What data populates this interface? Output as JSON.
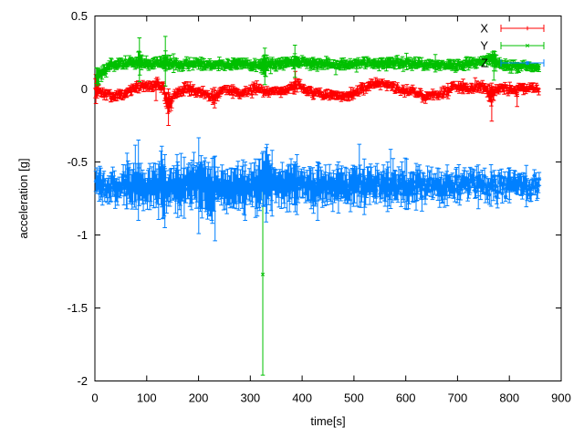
{
  "chart_data": {
    "type": "scatter",
    "style": "errorbars",
    "title": "",
    "xlabel": "time[s]",
    "ylabel": "acceleration [g]",
    "xlim": [
      0,
      900
    ],
    "ylim": [
      -2,
      0.5
    ],
    "xtick_values": [
      0,
      100,
      200,
      300,
      400,
      500,
      600,
      700,
      800,
      900
    ],
    "xtick_labels": [
      "0",
      "100",
      "200",
      "300",
      "400",
      "500",
      "600",
      "700",
      "800",
      "900"
    ],
    "ytick_values": [
      0.5,
      0,
      -0.5,
      -1,
      -1.5,
      -2
    ],
    "ytick_labels": [
      "0.5",
      "0",
      "-0.5",
      "-1",
      "-1.5",
      "-2"
    ],
    "grid": false,
    "background_color": "#ffffff",
    "border_color": "#000000",
    "legend_position": "top-right-inside",
    "legend": [
      {
        "label": "X",
        "marker": "plus",
        "color": "#ff0000"
      },
      {
        "label": "Y",
        "marker": "cross",
        "color": "#00c000"
      },
      {
        "label": "Z",
        "marker": "star",
        "color": "#0080ff"
      }
    ],
    "series": [
      {
        "name": "X",
        "color": "#ff0000",
        "marker": "plus",
        "seed": 7,
        "noise": 0.03,
        "dt": 1.55,
        "t_start": 1,
        "t_end": 858,
        "mean": [
          [
            1,
            0
          ],
          [
            8,
            -0.01
          ],
          [
            20,
            -0.035
          ],
          [
            35,
            -0.05
          ],
          [
            50,
            -0.04
          ],
          [
            65,
            -0.01
          ],
          [
            80,
            0.015
          ],
          [
            95,
            0.01
          ],
          [
            110,
            0.02
          ],
          [
            122,
            0.04
          ],
          [
            132,
            0.01
          ],
          [
            140,
            -0.1
          ],
          [
            147,
            -0.1
          ],
          [
            153,
            -0.04
          ],
          [
            163,
            -0.01
          ],
          [
            176,
            0
          ],
          [
            190,
            -0.015
          ],
          [
            205,
            -0.02
          ],
          [
            218,
            -0.04
          ],
          [
            228,
            -0.06
          ],
          [
            236,
            -0.05
          ],
          [
            244,
            -0.01
          ],
          [
            253,
            0
          ],
          [
            263,
            -0.01
          ],
          [
            273,
            -0.02
          ],
          [
            286,
            -0.03
          ],
          [
            298,
            -0.015
          ],
          [
            310,
            0
          ],
          [
            321,
            -0.005
          ],
          [
            333,
            -0.02
          ],
          [
            345,
            -0.015
          ],
          [
            357,
            0
          ],
          [
            368,
            -0.01
          ],
          [
            378,
            0
          ],
          [
            388,
            0.03
          ],
          [
            396,
            0.02
          ],
          [
            406,
            -0.005
          ],
          [
            420,
            -0.02
          ],
          [
            436,
            -0.03
          ],
          [
            451,
            -0.04
          ],
          [
            466,
            -0.05
          ],
          [
            481,
            -0.045
          ],
          [
            496,
            -0.035
          ],
          [
            508,
            -0.02
          ],
          [
            520,
            0
          ],
          [
            533,
            0.03
          ],
          [
            546,
            0.045
          ],
          [
            558,
            0.04
          ],
          [
            570,
            0.02
          ],
          [
            583,
            0
          ],
          [
            596,
            -0.01
          ],
          [
            609,
            -0.015
          ],
          [
            622,
            -0.03
          ],
          [
            636,
            -0.05
          ],
          [
            648,
            -0.045
          ],
          [
            661,
            -0.03
          ],
          [
            673,
            -0.025
          ],
          [
            686,
            0
          ],
          [
            696,
            0.02
          ],
          [
            706,
            0.015
          ],
          [
            718,
            0.005
          ],
          [
            731,
            0
          ],
          [
            743,
            0.025
          ],
          [
            753,
            0.02
          ],
          [
            762,
            -0.03
          ],
          [
            768,
            -0.05
          ],
          [
            775,
            -0.005
          ],
          [
            786,
            0.005
          ],
          [
            800,
            0
          ],
          [
            813,
            -0.01
          ],
          [
            826,
            0.005
          ],
          [
            841,
            0
          ],
          [
            858,
            0
          ]
        ],
        "err": [
          [
            1,
            0.06
          ],
          [
            6,
            0.03
          ],
          [
            12,
            0.02
          ],
          [
            130,
            0.02
          ],
          [
            140,
            0.06
          ],
          [
            150,
            0.022
          ],
          [
            222,
            0.02
          ],
          [
            230,
            0.04
          ],
          [
            238,
            0.02
          ],
          [
            378,
            0.02
          ],
          [
            388,
            0.035
          ],
          [
            398,
            0.02
          ],
          [
            755,
            0.02
          ],
          [
            766,
            0.05
          ],
          [
            776,
            0.02
          ],
          [
            858,
            0.016
          ]
        ],
        "spikes": [
          {
            "t": 2,
            "lo": -0.1,
            "hi": 0.1
          },
          {
            "t": 118,
            "lo": -0.08,
            "hi": 0.07
          },
          {
            "t": 142,
            "lo": -0.25,
            "hi": 0.0
          },
          {
            "t": 231,
            "lo": -0.13,
            "hi": 0.01
          },
          {
            "t": 387,
            "lo": -0.02,
            "hi": 0.12
          },
          {
            "t": 766,
            "lo": -0.22,
            "hi": 0.04
          },
          {
            "t": 815,
            "lo": -0.12,
            "hi": 0.02
          }
        ]
      },
      {
        "name": "Y",
        "color": "#00c000",
        "marker": "cross",
        "seed": 13,
        "noise": 0.028,
        "dt": 1.55,
        "t_start": 3,
        "t_end": 858,
        "mean": [
          [
            3,
            0.1
          ],
          [
            10,
            0.1
          ],
          [
            16,
            0.11
          ],
          [
            24,
            0.14
          ],
          [
            32,
            0.16
          ],
          [
            45,
            0.17
          ],
          [
            60,
            0.175
          ],
          [
            75,
            0.18
          ],
          [
            88,
            0.185
          ],
          [
            100,
            0.175
          ],
          [
            112,
            0.17
          ],
          [
            124,
            0.175
          ],
          [
            136,
            0.185
          ],
          [
            148,
            0.175
          ],
          [
            160,
            0.165
          ],
          [
            175,
            0.17
          ],
          [
            190,
            0.172
          ],
          [
            205,
            0.17
          ],
          [
            220,
            0.165
          ],
          [
            235,
            0.17
          ],
          [
            250,
            0.165
          ],
          [
            265,
            0.17
          ],
          [
            280,
            0.172
          ],
          [
            295,
            0.17
          ],
          [
            310,
            0.165
          ],
          [
            322,
            0.165
          ],
          [
            335,
            0.17
          ],
          [
            350,
            0.168
          ],
          [
            365,
            0.175
          ],
          [
            378,
            0.185
          ],
          [
            390,
            0.195
          ],
          [
            400,
            0.185
          ],
          [
            412,
            0.175
          ],
          [
            428,
            0.168
          ],
          [
            445,
            0.172
          ],
          [
            460,
            0.168
          ],
          [
            478,
            0.172
          ],
          [
            495,
            0.17
          ],
          [
            512,
            0.172
          ],
          [
            530,
            0.178
          ],
          [
            548,
            0.172
          ],
          [
            565,
            0.17
          ],
          [
            580,
            0.175
          ],
          [
            598,
            0.178
          ],
          [
            615,
            0.172
          ],
          [
            632,
            0.165
          ],
          [
            650,
            0.17
          ],
          [
            668,
            0.165
          ],
          [
            685,
            0.17
          ],
          [
            702,
            0.162
          ],
          [
            720,
            0.168
          ],
          [
            738,
            0.175
          ],
          [
            750,
            0.195
          ],
          [
            760,
            0.205
          ],
          [
            770,
            0.19
          ],
          [
            780,
            0.172
          ],
          [
            795,
            0.162
          ],
          [
            810,
            0.155
          ],
          [
            825,
            0.158
          ],
          [
            840,
            0.152
          ],
          [
            858,
            0.15
          ]
        ],
        "err": [
          [
            3,
            0.045
          ],
          [
            14,
            0.03
          ],
          [
            30,
            0.022
          ],
          [
            80,
            0.022
          ],
          [
            86,
            0.06
          ],
          [
            92,
            0.024
          ],
          [
            130,
            0.024
          ],
          [
            136,
            0.07
          ],
          [
            142,
            0.024
          ],
          [
            320,
            0.022
          ],
          [
            327,
            0.06
          ],
          [
            334,
            0.024
          ],
          [
            380,
            0.024
          ],
          [
            387,
            0.05
          ],
          [
            394,
            0.024
          ],
          [
            764,
            0.022
          ],
          [
            771,
            0.05
          ],
          [
            778,
            0.022
          ],
          [
            858,
            0.02
          ]
        ],
        "spikes": [
          {
            "t": 86,
            "lo": 0.05,
            "hi": 0.35
          },
          {
            "t": 136,
            "lo": 0.02,
            "hi": 0.36
          },
          {
            "t": 324,
            "lo": -1.96,
            "hi": -0.66,
            "y": -1.27
          },
          {
            "t": 328,
            "lo": 0.03,
            "hi": 0.28
          },
          {
            "t": 386,
            "lo": 0.08,
            "hi": 0.3
          },
          {
            "t": 770,
            "lo": 0.06,
            "hi": 0.26
          }
        ],
        "outlier_note": "single point near t=324 at y=-1.27 with error bar reaching -1.96"
      },
      {
        "name": "Z",
        "color": "#0080ff",
        "marker": "star",
        "seed": 5,
        "noise": 0.085,
        "dt": 1.55,
        "t_start": 2,
        "t_end": 858,
        "mean": [
          [
            2,
            -0.63
          ],
          [
            10,
            -0.655
          ],
          [
            20,
            -0.665
          ],
          [
            32,
            -0.66
          ],
          [
            45,
            -0.67
          ],
          [
            58,
            -0.655
          ],
          [
            70,
            -0.665
          ],
          [
            83,
            -0.645
          ],
          [
            95,
            -0.67
          ],
          [
            108,
            -0.66
          ],
          [
            120,
            -0.67
          ],
          [
            135,
            -0.685
          ],
          [
            150,
            -0.66
          ],
          [
            165,
            -0.67
          ],
          [
            180,
            -0.66
          ],
          [
            195,
            -0.665
          ],
          [
            210,
            -0.67
          ],
          [
            225,
            -0.68
          ],
          [
            240,
            -0.665
          ],
          [
            255,
            -0.67
          ],
          [
            270,
            -0.665
          ],
          [
            285,
            -0.67
          ],
          [
            300,
            -0.675
          ],
          [
            315,
            -0.665
          ],
          [
            330,
            -0.63
          ],
          [
            342,
            -0.65
          ],
          [
            355,
            -0.665
          ],
          [
            370,
            -0.66
          ],
          [
            385,
            -0.655
          ],
          [
            400,
            -0.665
          ],
          [
            420,
            -0.66
          ],
          [
            440,
            -0.665
          ],
          [
            460,
            -0.66
          ],
          [
            480,
            -0.665
          ],
          [
            500,
            -0.66
          ],
          [
            520,
            -0.665
          ],
          [
            540,
            -0.66
          ],
          [
            560,
            -0.665
          ],
          [
            580,
            -0.66
          ],
          [
            600,
            -0.662
          ],
          [
            620,
            -0.665
          ],
          [
            640,
            -0.66
          ],
          [
            660,
            -0.662
          ],
          [
            680,
            -0.66
          ],
          [
            700,
            -0.658
          ],
          [
            720,
            -0.66
          ],
          [
            740,
            -0.662
          ],
          [
            760,
            -0.665
          ],
          [
            780,
            -0.66
          ],
          [
            800,
            -0.658
          ],
          [
            820,
            -0.655
          ],
          [
            840,
            -0.655
          ],
          [
            858,
            -0.65
          ]
        ],
        "err": [
          [
            2,
            0.09
          ],
          [
            15,
            0.07
          ],
          [
            55,
            0.07
          ],
          [
            62,
            0.14
          ],
          [
            70,
            0.08
          ],
          [
            80,
            0.16
          ],
          [
            88,
            0.08
          ],
          [
            130,
            0.15
          ],
          [
            140,
            0.08
          ],
          [
            158,
            0.12
          ],
          [
            166,
            0.08
          ],
          [
            226,
            0.16
          ],
          [
            236,
            0.08
          ],
          [
            286,
            0.12
          ],
          [
            295,
            0.08
          ],
          [
            326,
            0.14
          ],
          [
            336,
            0.13
          ],
          [
            346,
            0.08
          ],
          [
            386,
            0.12
          ],
          [
            396,
            0.08
          ],
          [
            425,
            0.1
          ],
          [
            435,
            0.08
          ],
          [
            500,
            0.09
          ],
          [
            600,
            0.075
          ],
          [
            700,
            0.062
          ],
          [
            800,
            0.055
          ],
          [
            858,
            0.05
          ]
        ],
        "spikes": [
          {
            "t": 62,
            "lo": -0.82,
            "hi": -0.44
          },
          {
            "t": 84,
            "lo": -0.9,
            "hi": -0.35
          },
          {
            "t": 135,
            "lo": -0.95,
            "hi": -0.45
          },
          {
            "t": 160,
            "lo": -0.88,
            "hi": -0.5
          },
          {
            "t": 232,
            "lo": -1.04,
            "hi": -0.46
          },
          {
            "t": 290,
            "lo": -0.9,
            "hi": -0.5
          },
          {
            "t": 310,
            "lo": -0.88,
            "hi": -0.48
          },
          {
            "t": 332,
            "lo": -0.85,
            "hi": -0.38
          },
          {
            "t": 342,
            "lo": -0.87,
            "hi": -0.42
          },
          {
            "t": 390,
            "lo": -0.86,
            "hi": -0.45
          },
          {
            "t": 430,
            "lo": -0.9,
            "hi": -0.5
          },
          {
            "t": 470,
            "lo": -0.85,
            "hi": -0.5
          },
          {
            "t": 520,
            "lo": -0.86,
            "hi": -0.48
          },
          {
            "t": 565,
            "lo": -0.84,
            "hi": -0.5
          },
          {
            "t": 620,
            "lo": -0.83,
            "hi": -0.51
          },
          {
            "t": 680,
            "lo": -0.8,
            "hi": -0.52
          },
          {
            "t": 740,
            "lo": -0.82,
            "hi": -0.52
          },
          {
            "t": 800,
            "lo": -0.78,
            "hi": -0.54
          }
        ]
      }
    ]
  }
}
